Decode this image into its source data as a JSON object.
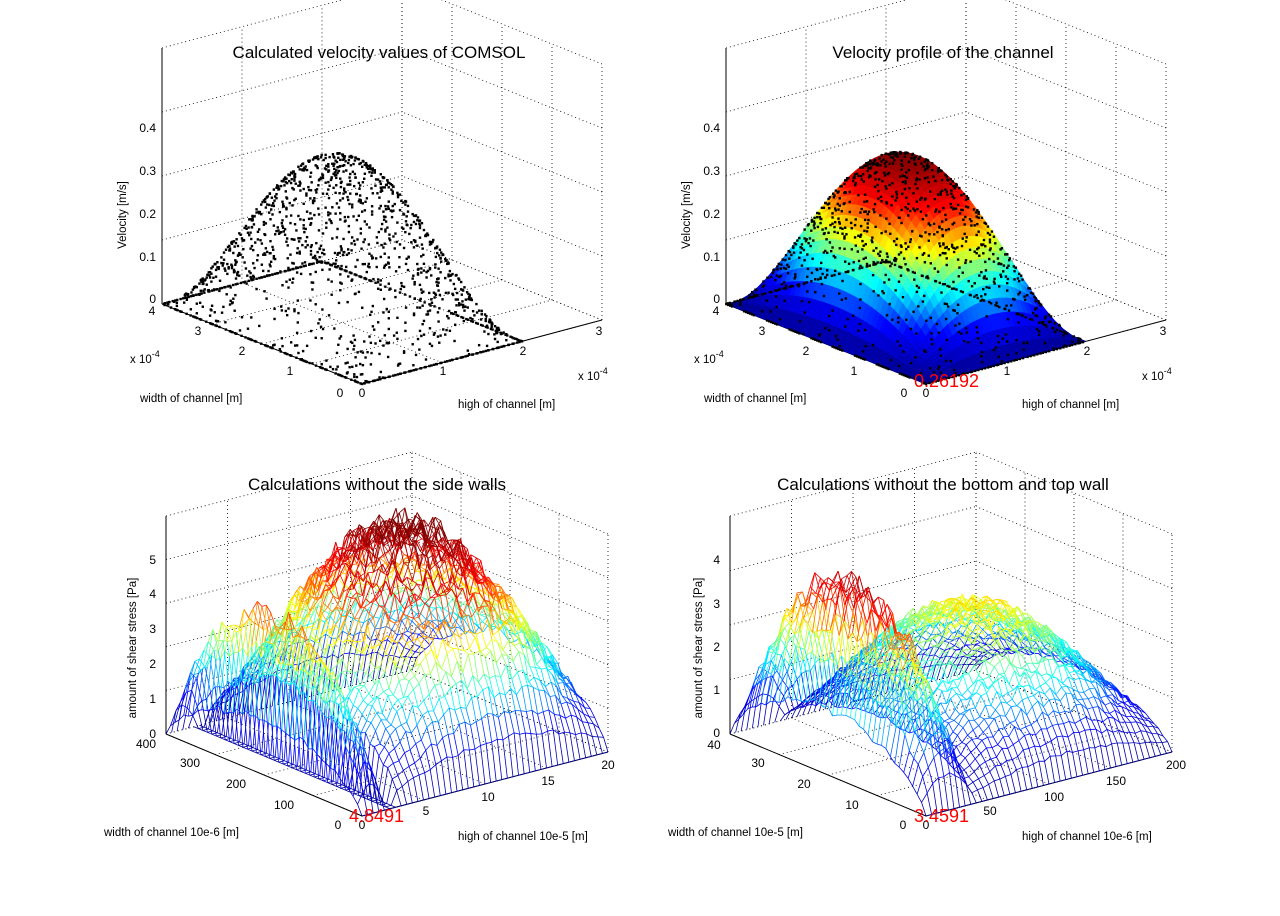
{
  "figure": {
    "background": "#ffffff",
    "colormap": [
      "#00008f",
      "#0000ff",
      "#00ffff",
      "#ffff00",
      "#ff0000",
      "#800000"
    ]
  },
  "chart_data": [
    {
      "type": "scatter3d",
      "title": "Calculated velocity values of COMSOL",
      "xlabel": "high of channel [m]",
      "ylabel": "width of channel [m]",
      "zlabel": "Velocity [m/s]",
      "x_ticks": [
        "0",
        "1",
        "2",
        "3"
      ],
      "x_exponent": "x 10",
      "x_exponent_power": "-4",
      "y_ticks": [
        "0",
        "1",
        "2",
        "3",
        "4"
      ],
      "y_exponent": "x 10",
      "y_exponent_power": "-4",
      "z_ticks": [
        "0",
        "0.1",
        "0.2",
        "0.3",
        "0.4"
      ],
      "xlim": [
        0,
        0.0003
      ],
      "ylim": [
        0,
        0.0004
      ],
      "zlim": [
        0,
        0.4
      ],
      "surface": {
        "x_max": 0.0002,
        "y_max": 0.0004,
        "z_peak": 0.26
      },
      "marker_color": "#000000",
      "peak_label": ""
    },
    {
      "type": "surface3d",
      "title": "Velocity profile of the channel",
      "xlabel": "high of channel [m]",
      "ylabel": "width of channel [m]",
      "zlabel": "Velocity [m/s]",
      "x_ticks": [
        "0",
        "1",
        "2",
        "3"
      ],
      "x_exponent": "x 10",
      "x_exponent_power": "-4",
      "y_ticks": [
        "0",
        "1",
        "2",
        "3",
        "4"
      ],
      "y_exponent": "x 10",
      "y_exponent_power": "-4",
      "z_ticks": [
        "0",
        "0.1",
        "0.2",
        "0.3",
        "0.4"
      ],
      "xlim": [
        0,
        0.0003
      ],
      "ylim": [
        0,
        0.0004
      ],
      "zlim": [
        0,
        0.4
      ],
      "surface": {
        "x_max": 0.0002,
        "y_max": 0.0004,
        "z_peak": 0.26192
      },
      "peak_label": "0.26192"
    },
    {
      "type": "mesh3d",
      "title": "Calculations without the side walls",
      "xlabel": "high of channel 10e-5 [m]",
      "ylabel": "width of channel 10e-6 [m]",
      "zlabel": "amount of shear stress [Pa]",
      "x_ticks": [
        "0",
        "5",
        "10",
        "15",
        "20"
      ],
      "y_ticks": [
        "0",
        "100",
        "200",
        "300",
        "400"
      ],
      "z_ticks": [
        "0",
        "1",
        "2",
        "3",
        "4",
        "5"
      ],
      "xlim": [
        0,
        20
      ],
      "ylim": [
        0,
        400
      ],
      "zlim": [
        0,
        5
      ],
      "lobes": [
        {
          "x_range": [
            0,
            2
          ],
          "y_range": [
            0,
            400
          ],
          "peak": 3.6
        },
        {
          "x_range": [
            3,
            20
          ],
          "y_range": [
            0,
            400
          ],
          "peak": 4.8491
        }
      ],
      "peak_label": "4.8491"
    },
    {
      "type": "mesh3d",
      "title": "Calculations without the bottom and top wall",
      "xlabel": "high of channel 10e-6 [m]",
      "ylabel": "width of channel 10e-5 [m]",
      "zlabel": "amount of shear stress [Pa]",
      "x_ticks": [
        "0",
        "50",
        "100",
        "150",
        "200"
      ],
      "y_ticks": [
        "0",
        "10",
        "20",
        "30",
        "40"
      ],
      "z_ticks": [
        "0",
        "1",
        "2",
        "3",
        "4"
      ],
      "xlim": [
        0,
        200
      ],
      "ylim": [
        0,
        40
      ],
      "zlim": [
        0,
        4
      ],
      "lobes": [
        {
          "x_range": [
            0,
            40
          ],
          "y_range": [
            0,
            40
          ],
          "peak": 3.4591
        },
        {
          "x_range": [
            40,
            200
          ],
          "y_range": [
            0,
            40
          ],
          "peak": 2.35
        }
      ],
      "peak_label": "3.4591"
    }
  ]
}
